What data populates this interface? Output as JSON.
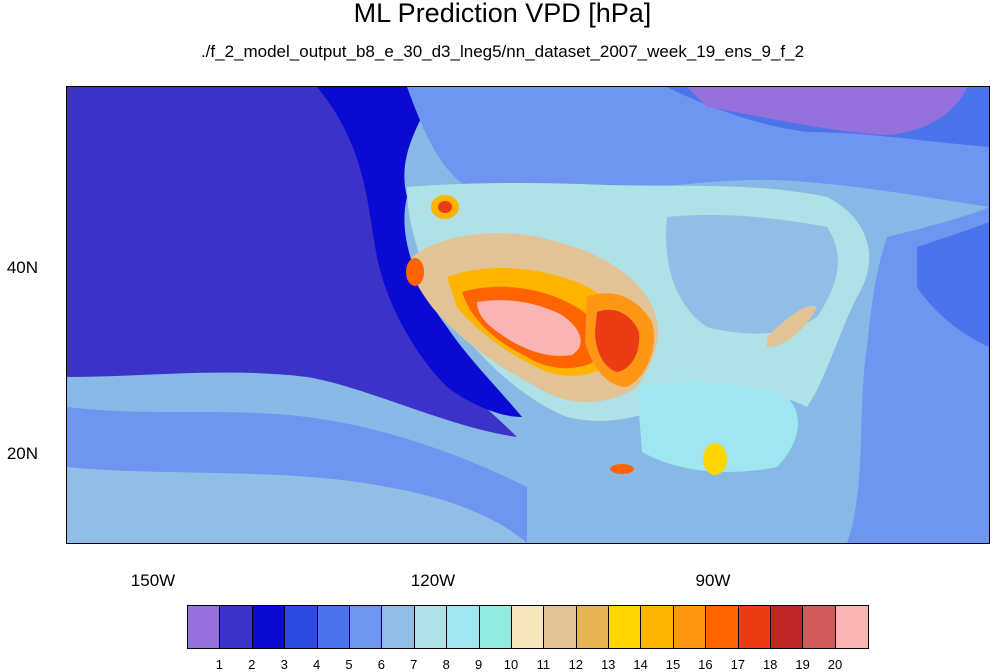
{
  "title": "ML Prediction VPD [hPa]",
  "subtitle": "./f_2_model_output_b8_e_30_d3_lneg5/nn_dataset_2007_week_19_ens_9_f_2",
  "lon_ticks": [
    "150W",
    "120W",
    "90W"
  ],
  "lat_ticks": [
    "40N",
    "20N"
  ],
  "colorbar": {
    "labels": [
      "1",
      "2",
      "3",
      "4",
      "5",
      "6",
      "7",
      "8",
      "9",
      "10",
      "11",
      "12",
      "13",
      "14",
      "15",
      "16",
      "17",
      "18",
      "19",
      "20"
    ],
    "colors": [
      "#9470dc",
      "#3c32c8",
      "#0a0ad2",
      "#2d4be1",
      "#4b73eb",
      "#6e96f0",
      "#91bee6",
      "#afe1e6",
      "#a0e6f0",
      "#91ebe1",
      "#f5e6be",
      "#e1c396",
      "#e6b450",
      "#ffd700",
      "#ffb400",
      "#ff9614",
      "#ff6400",
      "#eb3c14",
      "#be2828",
      "#d25a5a",
      "#fab4b4"
    ]
  },
  "map": {
    "extent": {
      "lon": [
        -160,
        -61
      ],
      "lat": [
        10,
        59
      ]
    },
    "ocean_pacific_color": "#2d4be1",
    "pacific_far_color": "#3c32c8"
  }
}
